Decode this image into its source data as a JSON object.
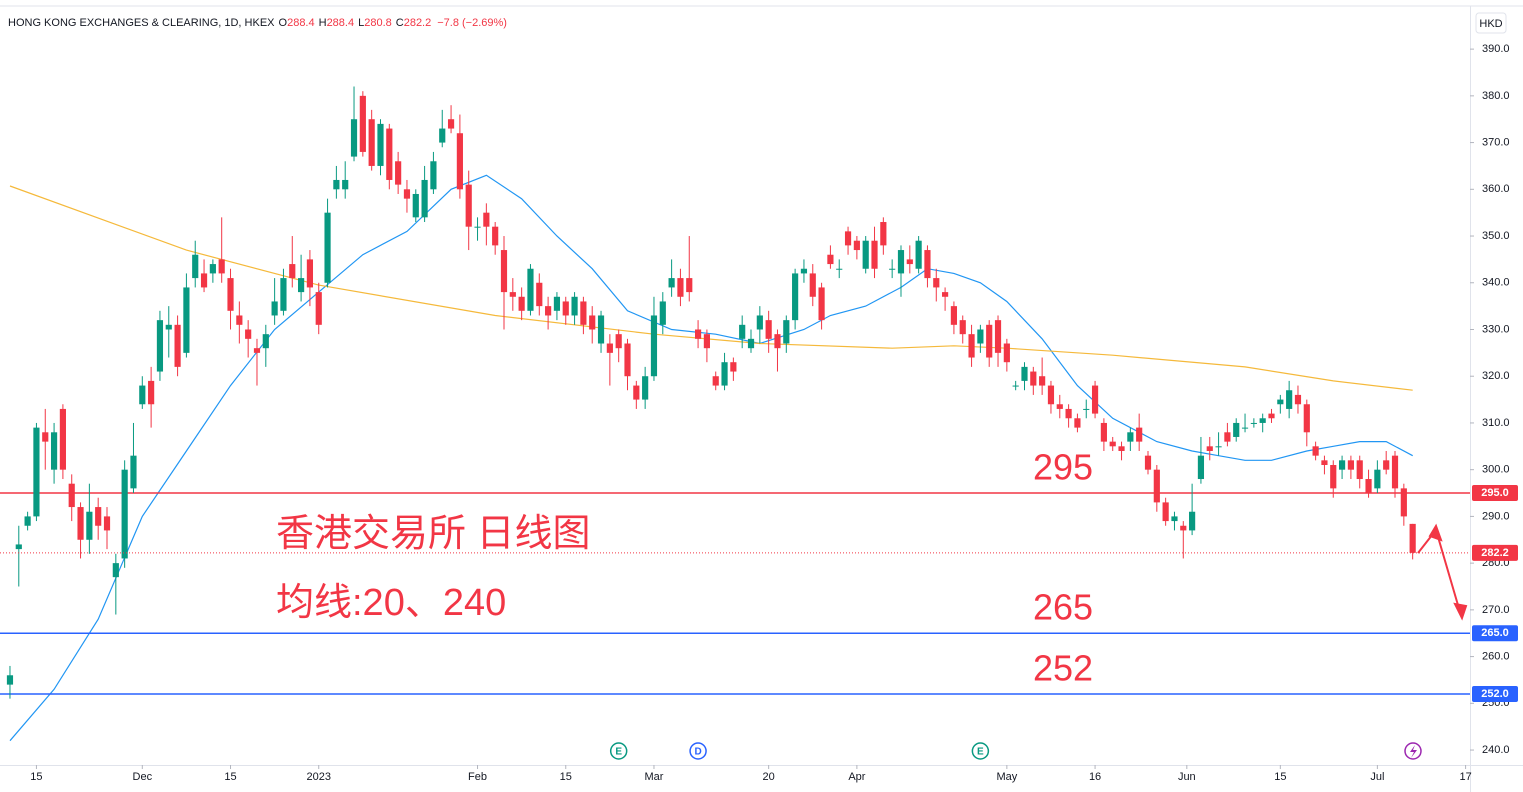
{
  "chart_data": {
    "type": "candlestick",
    "header": {
      "title": "HONG KONG EXCHANGES & CLEARING, 1D, HKEX",
      "labels": [
        "O",
        "H",
        "L",
        "C"
      ],
      "change": "−7.8 (−2.69%)"
    },
    "currency": "HKD",
    "annotations": [
      "香港交易所 日线图",
      "均线:20、240"
    ],
    "up_color": "#089981",
    "down_color": "#f23645",
    "open": [
      254,
      283,
      288,
      290,
      308,
      300,
      313,
      297,
      292,
      285,
      292,
      290,
      277,
      281,
      296,
      314,
      319,
      321,
      330,
      331,
      325,
      341,
      342,
      342,
      345,
      341,
      333,
      330,
      326,
      326,
      333,
      334,
      344,
      338,
      345,
      338,
      340,
      360,
      360,
      367,
      380,
      375,
      365,
      373,
      366,
      360,
      354,
      354,
      360,
      370,
      375,
      372,
      361,
      352,
      355,
      352,
      347,
      338,
      337,
      334,
      340,
      335,
      334,
      336,
      333,
      336,
      333,
      327,
      327,
      329,
      327,
      318,
      315,
      320,
      331,
      339,
      341,
      341,
      330,
      329,
      320,
      318,
      323,
      328,
      326,
      330,
      332,
      329,
      327,
      332,
      342,
      342,
      339,
      346,
      343,
      351,
      349,
      343,
      349,
      353,
      343,
      342,
      345,
      343,
      347,
      341,
      338,
      335,
      332,
      329,
      327,
      331,
      332,
      327,
      318,
      319,
      321,
      320,
      318,
      314,
      313,
      311,
      313,
      318,
      310,
      306,
      305,
      306,
      309,
      303,
      300,
      293,
      289,
      288,
      287,
      298,
      305,
      305,
      308,
      307,
      309,
      310,
      310,
      312,
      314,
      313,
      316,
      314,
      305,
      302,
      301,
      300,
      302,
      302,
      298,
      296,
      302,
      303,
      296,
      288.4
    ],
    "high": [
      258,
      288,
      291,
      310,
      313,
      310,
      314,
      299,
      293,
      297,
      294,
      292,
      282,
      302,
      310,
      320,
      322,
      334,
      335,
      333,
      342,
      349,
      345,
      345,
      354,
      343,
      336,
      332,
      328,
      331,
      341,
      343,
      350,
      346,
      347,
      340,
      358,
      365,
      366,
      382,
      381,
      377,
      375,
      374,
      368,
      362,
      360,
      365,
      368,
      377,
      378,
      376,
      364,
      354,
      357,
      353,
      350,
      341,
      339,
      344,
      342,
      337,
      338,
      337,
      338,
      337,
      335,
      334,
      329,
      330,
      328,
      319,
      322,
      337,
      338,
      345,
      343,
      350,
      332,
      330,
      321,
      325,
      324,
      333,
      330,
      335,
      334,
      330,
      333,
      343,
      345,
      344,
      340,
      348,
      345,
      352,
      350,
      350,
      352,
      354,
      345,
      348,
      348,
      350,
      348,
      343,
      339,
      336,
      333,
      331,
      331,
      332,
      333,
      328,
      319,
      323,
      322,
      324,
      319,
      316,
      314,
      312,
      315,
      319,
      311,
      307,
      306,
      309,
      312,
      304,
      301,
      294,
      291,
      289,
      297,
      307,
      307,
      308,
      310,
      311,
      312,
      311,
      312,
      313,
      316,
      319,
      318,
      315,
      306,
      303,
      302,
      303,
      303,
      303,
      300,
      302,
      304,
      304,
      297,
      288.4
    ],
    "low": [
      251,
      275,
      287,
      289,
      300,
      297,
      298,
      289,
      281,
      282,
      285,
      283,
      269,
      279,
      295,
      313,
      309,
      319,
      324,
      320,
      324,
      339,
      338,
      340,
      340,
      330,
      327,
      324,
      318,
      322,
      331,
      333,
      339,
      336,
      335,
      329,
      339,
      358,
      358,
      366,
      367,
      364,
      363,
      360,
      359,
      355,
      353,
      353,
      359,
      369,
      372,
      358,
      347,
      349,
      348,
      346,
      330,
      334,
      332,
      333,
      333,
      330,
      332,
      331,
      331,
      329,
      327,
      325,
      318,
      323,
      317,
      313,
      313,
      319,
      329,
      337,
      335,
      336,
      326,
      323,
      317,
      317,
      319,
      326,
      325,
      327,
      325,
      321,
      325,
      330,
      340,
      335,
      330,
      343,
      341,
      346,
      345,
      342,
      341,
      346,
      341,
      337,
      342,
      342,
      339,
      336,
      334,
      329,
      327,
      322,
      325,
      322,
      322,
      321,
      317,
      317,
      316,
      316,
      312,
      311,
      309,
      308,
      311,
      311,
      304,
      304,
      302,
      304,
      304,
      299,
      291,
      288,
      287,
      281,
      286,
      297,
      302,
      303,
      305,
      306,
      308,
      309,
      308,
      310,
      312,
      311,
      312,
      305,
      302,
      299,
      294,
      298,
      298,
      296,
      294,
      295,
      299,
      294,
      288,
      280.8
    ],
    "close": [
      256,
      284,
      290,
      309,
      306,
      308,
      300,
      292,
      285,
      291,
      288,
      287,
      280,
      300,
      303,
      318,
      314,
      332,
      331,
      322,
      339,
      346,
      339,
      344,
      342,
      334,
      331,
      328,
      325,
      329,
      336,
      341,
      341,
      341,
      339,
      331,
      355,
      362,
      362,
      375,
      368,
      365,
      374,
      362,
      361,
      358,
      359,
      362,
      366,
      373,
      373,
      360,
      352,
      352,
      352,
      348,
      338,
      337,
      334,
      343,
      335,
      333,
      337,
      333,
      337,
      331,
      330,
      333,
      325,
      326,
      320,
      315,
      320,
      333,
      336,
      341,
      337,
      338,
      328,
      326,
      318,
      323,
      321,
      331,
      328,
      333,
      328,
      326,
      332,
      342,
      343,
      337,
      332,
      344,
      343,
      348,
      347,
      349,
      343,
      348,
      343,
      347,
      344,
      349,
      341,
      339,
      337,
      331,
      329,
      324,
      330,
      324,
      325,
      323,
      318,
      322,
      318,
      318,
      314,
      313,
      311,
      309,
      313,
      312,
      306,
      305,
      304,
      308,
      306,
      300,
      293,
      289,
      290,
      287,
      291,
      303,
      304,
      305,
      306,
      310,
      309,
      310,
      311,
      311,
      315,
      317,
      314,
      308,
      303,
      301,
      296,
      302,
      300,
      298,
      295,
      300,
      300,
      296,
      290,
      282.2
    ],
    "lines": [
      {
        "color": "#2196f3",
        "x": [
          0,
          5,
          10,
          15,
          20,
          25,
          30,
          35,
          40,
          45,
          50,
          54,
          58,
          62,
          66,
          70,
          75,
          80,
          85,
          90,
          93,
          97,
          101,
          104,
          107,
          110,
          113,
          117,
          121,
          125,
          130,
          134,
          137,
          140,
          143,
          147,
          150,
          153,
          156,
          159
        ],
        "values": [
          242,
          253,
          268,
          290,
          304,
          318,
          330,
          338,
          346,
          351,
          360,
          363,
          358,
          350,
          343,
          334,
          330,
          329,
          327,
          330,
          333,
          335,
          339,
          343,
          342,
          340,
          336,
          328,
          318,
          311,
          306,
          304,
          303,
          302,
          302,
          304,
          305,
          306,
          306,
          303
        ]
      },
      {
        "color": "#f5b93b",
        "x": [
          0,
          20,
          35,
          55,
          73,
          85,
          100,
          107,
          113,
          125,
          140,
          150,
          159
        ],
        "values": [
          360.7,
          347,
          339.5,
          333,
          329,
          327,
          326,
          326.5,
          326,
          324.5,
          322,
          319,
          317
        ]
      }
    ],
    "levels": [
      {
        "value": 295,
        "label": "295.0",
        "color": "#f23645"
      },
      {
        "value": 265,
        "label": "265.0",
        "color": "#2962ff"
      },
      {
        "value": 252,
        "label": "252.0",
        "color": "#2962ff"
      }
    ],
    "events": [
      {
        "x": 69,
        "label": "E"
      },
      {
        "x": 78,
        "label": "D"
      },
      {
        "x": 110,
        "label": "E"
      }
    ],
    "xlim": [
      -1.13,
      165.5
    ],
    "ylim": [
      236.8,
      398.8
    ],
    "xticks": [
      {
        "value": 3,
        "label": "15"
      },
      {
        "value": 15,
        "label": "Dec"
      },
      {
        "value": 25,
        "label": "15"
      },
      {
        "value": 35,
        "label": "2023"
      },
      {
        "value": 53,
        "label": "Feb"
      },
      {
        "value": 63,
        "label": "15"
      },
      {
        "value": 73,
        "label": "Mar"
      },
      {
        "value": 86,
        "label": "20"
      },
      {
        "value": 96,
        "label": "Apr"
      },
      {
        "value": 113,
        "label": "May"
      },
      {
        "value": 123,
        "label": "16"
      },
      {
        "value": 133.4,
        "label": "Jun"
      },
      {
        "value": 144,
        "label": "15"
      },
      {
        "value": 155,
        "label": "Jul"
      },
      {
        "value": 165,
        "label": "17"
      }
    ],
    "yticks": [
      {
        "value": 240,
        "label": "240.0"
      },
      {
        "value": 250,
        "label": "250.0"
      },
      {
        "value": 260,
        "label": "260.0"
      },
      {
        "value": 270,
        "label": "270.0"
      },
      {
        "value": 280,
        "label": "280.0"
      },
      {
        "value": 290,
        "label": "290.0"
      },
      {
        "value": 300,
        "label": "300.0"
      },
      {
        "value": 310,
        "label": "310.0"
      },
      {
        "value": 320,
        "label": "320.0"
      },
      {
        "value": 330,
        "label": "330.0"
      },
      {
        "value": 340,
        "label": "340.0"
      },
      {
        "value": 350,
        "label": "350.0"
      },
      {
        "value": 360,
        "label": "360.0"
      },
      {
        "value": 370,
        "label": "370.0"
      },
      {
        "value": 380,
        "label": "380.0"
      },
      {
        "value": 390,
        "label": "390.0"
      }
    ]
  }
}
